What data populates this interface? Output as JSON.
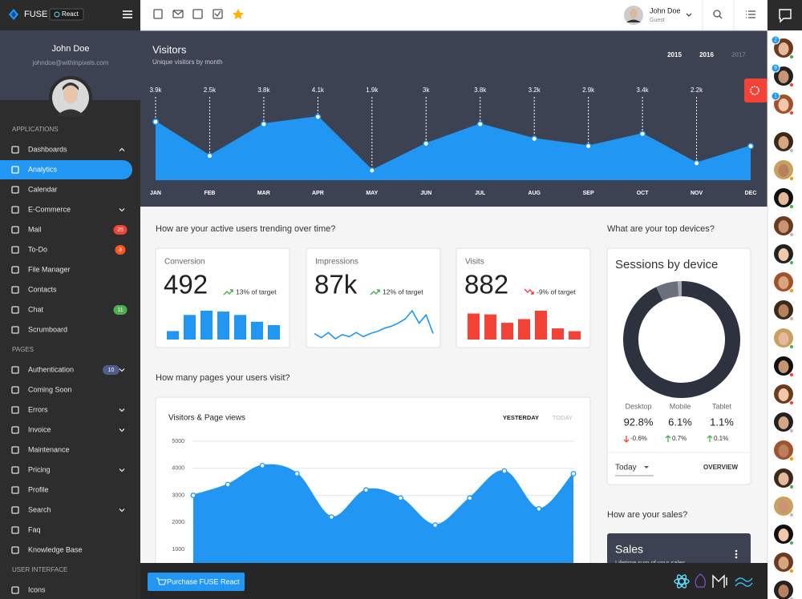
{
  "app": {
    "brand": "FUSE",
    "badge": "React"
  },
  "sidebar": {
    "user_name": "John Doe",
    "user_email": "johndoe@withinpixels.com",
    "sections": [
      {
        "title": "APPLICATIONS",
        "items": [
          {
            "label": "Dashboards",
            "expand": "open"
          },
          {
            "label": "Analytics",
            "active": true
          },
          {
            "label": "Calendar"
          },
          {
            "label": "E-Commerce",
            "expand": "closed"
          },
          {
            "label": "Mail",
            "badge": 25,
            "badge_color": "#f44336"
          },
          {
            "label": "To-Do",
            "badge": 3,
            "badge_color": "#ff5722"
          },
          {
            "label": "File Manager"
          },
          {
            "label": "Contacts"
          },
          {
            "label": "Chat",
            "badge": 11,
            "badge_color": "#4caf50"
          },
          {
            "label": "Scrumboard"
          }
        ]
      },
      {
        "title": "PAGES",
        "items": [
          {
            "label": "Authentication",
            "badge": 10,
            "badge_color": "#525e8a",
            "expand": "closed"
          },
          {
            "label": "Coming Soon"
          },
          {
            "label": "Errors",
            "expand": "closed"
          },
          {
            "label": "Invoice",
            "expand": "closed"
          },
          {
            "label": "Maintenance"
          },
          {
            "label": "Pricing",
            "expand": "closed"
          },
          {
            "label": "Profile"
          },
          {
            "label": "Search",
            "expand": "closed"
          },
          {
            "label": "Faq"
          },
          {
            "label": "Knowledge Base"
          }
        ]
      },
      {
        "title": "USER INTERFACE",
        "items": [
          {
            "label": "Icons"
          }
        ]
      }
    ]
  },
  "toolbar": {
    "user_name": "John Doe",
    "user_role": "Guest"
  },
  "visitors": {
    "type": "area",
    "title": "Visitors",
    "subtitle": "Unique visitors by month",
    "years": [
      "2015",
      "2016",
      "2017"
    ],
    "categories": [
      "JAN",
      "FEB",
      "MAR",
      "APR",
      "MAY",
      "JUN",
      "JUL",
      "AUG",
      "SEP",
      "OCT",
      "NOV",
      "DEC"
    ],
    "values": [
      3900,
      2500,
      3800,
      4100,
      1900,
      3000,
      3800,
      3200,
      2900,
      3400,
      2200,
      2900
    ],
    "value_labels": [
      "3.9k",
      "2.5k",
      "3.8k",
      "4.1k",
      "1.9k",
      "3k",
      "3.8k",
      "3.2k",
      "2.9k",
      "3.4k",
      "2.2k",
      null
    ],
    "color": "#2196f3"
  },
  "questions": {
    "users": "How are your active users trending over time?",
    "pages": "How many pages your users visit?",
    "devices": "What are your top devices?",
    "sales": "How are your sales?"
  },
  "kpis": [
    {
      "type": "bar",
      "title": "Conversion",
      "value": 492,
      "trend": "13% of target",
      "trend_direction": "up",
      "color": "#2196f3",
      "values": [
        10,
        29,
        34,
        33,
        29,
        21,
        17
      ]
    },
    {
      "type": "line",
      "title": "Impressions",
      "value": 87000,
      "value_label": "87k",
      "trend": "12% of target",
      "trend_direction": "up",
      "color": "#2196f3",
      "values": [
        12,
        8,
        13,
        7,
        11,
        9,
        13,
        9,
        12,
        14,
        17,
        19,
        22,
        26,
        34,
        22,
        30,
        12
      ]
    },
    {
      "type": "bar",
      "title": "Visits",
      "value": 882,
      "trend": "-9% of target",
      "trend_direction": "down",
      "color": "#f44336",
      "values": [
        28,
        27,
        18,
        22,
        31,
        12,
        9
      ]
    }
  ],
  "page_views": {
    "type": "area",
    "title": "Visitors & Page views",
    "tabs": [
      "YESTERDAY",
      "TODAY"
    ],
    "values": [
      3000,
      3400,
      4100,
      3800,
      2200,
      3200,
      2900,
      1900,
      2900,
      3900,
      2500,
      3800
    ],
    "color": "#2196f3",
    "ylim": [
      0,
      5000
    ],
    "yticks": [
      1000,
      2000,
      3000,
      4000,
      5000
    ],
    "grid": true
  },
  "devices": {
    "type": "donut",
    "title": "Sessions by device",
    "categories": [
      "Desktop",
      "Mobile",
      "Tablet"
    ],
    "values": [
      92.8,
      6.1,
      1.1
    ],
    "value_labels": [
      "92.8%",
      "6.1%",
      "1.1%"
    ],
    "changes": [
      -0.6,
      0.7,
      0.1
    ],
    "change_labels": [
      "-0.6%",
      "0.7%",
      "0.1%"
    ],
    "colors": [
      "#2d323e",
      "#6b707c",
      "#a3a8b2"
    ],
    "period": "Today",
    "action": "OVERVIEW"
  },
  "sales": {
    "title": "Sales",
    "subtitle": "Lifetime sum of your sales"
  },
  "quick_panel": {
    "badges": [
      2,
      9,
      1
    ]
  },
  "footer": {
    "button": "Purchase FUSE React"
  }
}
